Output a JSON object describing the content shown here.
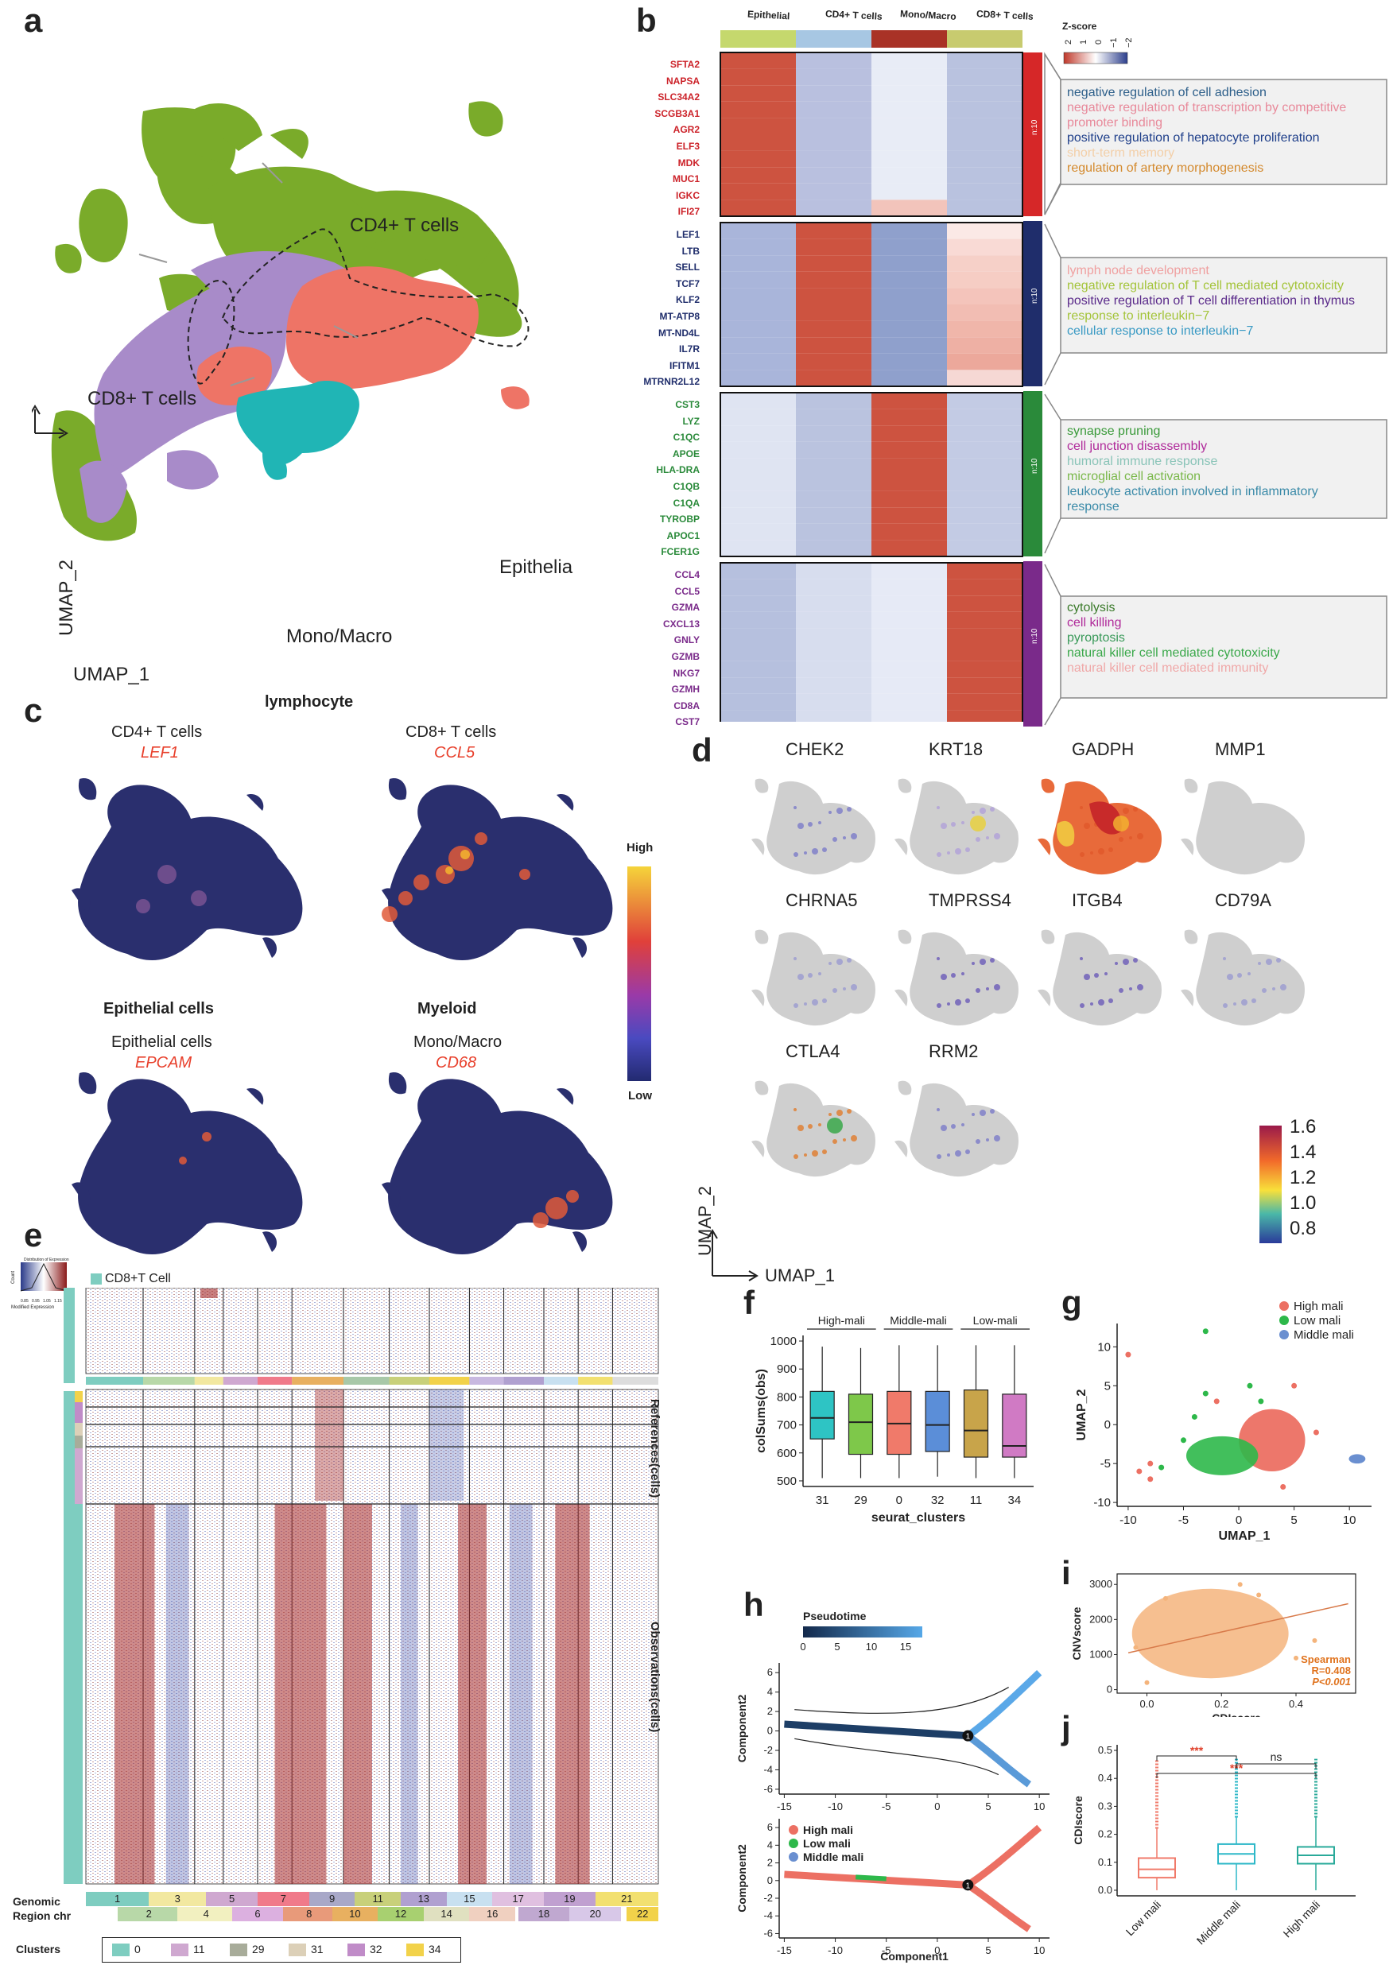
{
  "figure": {
    "panel_labels": {
      "a": "a",
      "b": "b",
      "c": "c",
      "d": "d",
      "e": "e",
      "f": "f",
      "g": "g",
      "h": "h",
      "i": "i",
      "j": "j"
    }
  },
  "panel_a": {
    "labels": [
      "CD4+ T cells",
      "CD8+ T cells",
      "Epithelia",
      "Mono/Macro"
    ],
    "axis_x": "UMAP_1",
    "axis_y": "UMAP_2",
    "colors": {
      "cd4": "#7aab2a",
      "cd8": "#a88bc9",
      "epi": "#ee7466",
      "mono": "#20b5b5"
    }
  },
  "panel_b": {
    "columns": [
      "Epithelial",
      "CD4+ T cells",
      "Mono/Macro",
      "CD8+ T cells"
    ],
    "column_colors": [
      "#c5d86d",
      "#a7c7e3",
      "#a93226",
      "#c8cb6f"
    ],
    "legend_title": "Z-score",
    "legend_ticks": [
      "2",
      "1",
      "0",
      "−1",
      "−2"
    ],
    "groups": [
      {
        "label": "n:10",
        "bar_color": "#d62728",
        "gene_color": "#cc2229",
        "genes": [
          "SFTA2",
          "NAPSA",
          "SLC34A2",
          "SCGB3A1",
          "AGR2",
          "ELF3",
          "MDK",
          "MUC1",
          "IGKC",
          "IFI27"
        ],
        "terms": [
          {
            "t": "negative regulation of cell adhesion",
            "c": "#2d5f8a"
          },
          {
            "t": "negative regulation of transcription by competitive",
            "c": "#e8899a"
          },
          {
            "t": "promoter binding",
            "c": "#e8899a"
          },
          {
            "t": "positive regulation of hepatocyte proliferation",
            "c": "#1f3f8a"
          },
          {
            "t": "short-term memory",
            "c": "#f3cfa8"
          },
          {
            "t": "regulation of artery morphogenesis",
            "c": "#d48a2e"
          }
        ]
      },
      {
        "label": "n:10",
        "bar_color": "#1f2d6b",
        "gene_color": "#1f2d6b",
        "genes": [
          "LEF1",
          "LTB",
          "SELL",
          "TCF7",
          "KLF2",
          "MT-ATP8",
          "MT-ND4L",
          "IL7R",
          "IFITM1",
          "MTRNR2L12"
        ],
        "terms": [
          {
            "t": "lymph node development",
            "c": "#f0a0a0"
          },
          {
            "t": "negative regulation of T cell mediated cytotoxicity",
            "c": "#a4c43a"
          },
          {
            "t": "positive regulation of T cell differentiation in thymus",
            "c": "#5a2a8a"
          },
          {
            "t": "response to interleukin−7",
            "c": "#a4c43a"
          },
          {
            "t": "cellular response to interleukin−7",
            "c": "#3a9ac4"
          }
        ]
      },
      {
        "label": "n:10",
        "bar_color": "#2a8a3a",
        "gene_color": "#2a8a3a",
        "genes": [
          "CST3",
          "LYZ",
          "C1QC",
          "APOE",
          "HLA-DRA",
          "C1QB",
          "C1QA",
          "TYROBP",
          "APOC1",
          "FCER1G"
        ],
        "terms": [
          {
            "t": "synapse pruning",
            "c": "#3a9a3a"
          },
          {
            "t": "cell junction disassembly",
            "c": "#b02a9a"
          },
          {
            "t": "humoral immune response",
            "c": "#8ac4b8"
          },
          {
            "t": "microglial cell activation",
            "c": "#7ab84a"
          },
          {
            "t": "leukocyte activation involved in inflammatory",
            "c": "#3a8aa8"
          },
          {
            "t": "response",
            "c": "#3a8aa8"
          }
        ]
      },
      {
        "label": "n:10",
        "bar_color": "#7a2a8a",
        "gene_color": "#7a2a8a",
        "genes": [
          "CCL4",
          "CCL5",
          "GZMA",
          "CXCL13",
          "GNLY",
          "GZMB",
          "NKG7",
          "GZMH",
          "CD8A",
          "CST7"
        ],
        "terms": [
          {
            "t": "cytolysis",
            "c": "#3a7a2a"
          },
          {
            "t": "cell killing",
            "c": "#b02a9a"
          },
          {
            "t": "pyroptosis",
            "c": "#3a9a5a"
          },
          {
            "t": "natural killer cell mediated cytotoxicity",
            "c": "#3aa84a"
          },
          {
            "t": "natural killer cell mediated immunity",
            "c": "#f0a8a8"
          }
        ]
      }
    ]
  },
  "panel_c": {
    "row1_title": "lymphocyte",
    "row2_titles": [
      "Epithelial cells",
      "Myeloid"
    ],
    "plots": [
      {
        "cell": "CD4+ T cells",
        "gene": "LEF1"
      },
      {
        "cell": "CD8+ T cells",
        "gene": "CCL5"
      },
      {
        "cell": "Epithelial cells",
        "gene": "EPCAM"
      },
      {
        "cell": "Mono/Macro",
        "gene": "CD68"
      }
    ],
    "legend_high": "High",
    "legend_low": "Low"
  },
  "panel_d": {
    "genes": [
      "CHEK2",
      "KRT18",
      "GADPH",
      "MMP1",
      "CHRNA5",
      "TMPRSS4",
      "ITGB4",
      "CD79A",
      "CTLA4",
      "RRM2"
    ],
    "legend_ticks": [
      "1.6",
      "1.4",
      "1.2",
      "1.0",
      "0.8"
    ],
    "axis_x": "UMAP_1",
    "axis_y": "UMAP_2"
  },
  "panel_e": {
    "ref_label": "CD8+T Cell",
    "references_label": "References(cells)",
    "observations_label": "Observations(cells)",
    "key_title": "Distribution of Expression",
    "key_xlabel": "Modified Expression",
    "key_ylabel": "Count",
    "key_ticks": [
      "0.85",
      "0.95",
      "1.05",
      "1.15"
    ],
    "genomic_label": "Genomic",
    "region_label": "Region chr",
    "chr_top": [
      "1",
      "3",
      "5",
      "7",
      "9",
      "11",
      "13",
      "15",
      "17",
      "19",
      "21"
    ],
    "chr_bottom": [
      "2",
      "4",
      "6",
      "8",
      "10",
      "12",
      "14",
      "16",
      "18",
      "20",
      "22"
    ],
    "clusters_label": "Clusters",
    "clusters": [
      {
        "name": "0",
        "color": "#7ecdc0"
      },
      {
        "name": "11",
        "color": "#cfa8d0"
      },
      {
        "name": "29",
        "color": "#a8ac9a"
      },
      {
        "name": "31",
        "color": "#dcd0b8"
      },
      {
        "name": "32",
        "color": "#c08cc8"
      },
      {
        "name": "34",
        "color": "#f2d24a"
      }
    ]
  },
  "panel_f": {
    "chart_data": {
      "type": "box",
      "categories": [
        "31",
        "29",
        "0",
        "32",
        "11",
        "34"
      ],
      "groups": [
        "High-mali",
        "Middle-mali",
        "Low-mali"
      ],
      "xlabel": "seurat_clusters",
      "ylabel": "colSums(obs)",
      "ylim": [
        480,
        1020
      ],
      "yticks": [
        "500",
        "600",
        "700",
        "800",
        "900",
        "1000"
      ],
      "colors": [
        "#2ec4c4",
        "#7ec84a",
        "#f07a6a",
        "#5b8ed8",
        "#c8a44a",
        "#d07ac4"
      ],
      "boxes": [
        {
          "q1": 650,
          "med": 725,
          "q3": 820,
          "lo": 510,
          "hi": 980
        },
        {
          "q1": 595,
          "med": 710,
          "q3": 810,
          "lo": 510,
          "hi": 975
        },
        {
          "q1": 595,
          "med": 705,
          "q3": 820,
          "lo": 510,
          "hi": 985
        },
        {
          "q1": 605,
          "med": 700,
          "q3": 820,
          "lo": 515,
          "hi": 985
        },
        {
          "q1": 585,
          "med": 680,
          "q3": 825,
          "lo": 510,
          "hi": 985
        },
        {
          "q1": 585,
          "med": 625,
          "q3": 810,
          "lo": 510,
          "hi": 985
        }
      ]
    }
  },
  "panel_g": {
    "chart_data": {
      "type": "scatter",
      "legend": [
        "High mali",
        "Low mali",
        "Middle mali"
      ],
      "colors": [
        "#ec7063",
        "#2db84a",
        "#6a8fd0"
      ],
      "xlabel": "UMAP_1",
      "ylabel": "UMAP_2",
      "xticks": [
        "-10",
        "-5",
        "0",
        "5",
        "10"
      ],
      "yticks": [
        "10",
        "5",
        "0",
        "-5",
        "-10"
      ],
      "xlim": [
        -11,
        12
      ],
      "ylim": [
        -10.5,
        13
      ]
    }
  },
  "panel_h": {
    "pseudotime_label": "Pseudotime",
    "pseudotime_ticks": [
      "0",
      "5",
      "10",
      "15"
    ],
    "top_ylabel": "Component2",
    "bottom_ylabel": "Component2",
    "xlabel": "Component1",
    "top_yticks": [
      "6",
      "4",
      "2",
      "0",
      "-2",
      "-4",
      "-6"
    ],
    "bottom_yticks": [
      "6",
      "4",
      "2",
      "0",
      "-2",
      "-4",
      "-6"
    ],
    "xticks": [
      "-15",
      "-10",
      "-5",
      "0",
      "5",
      "10"
    ],
    "branch": "1",
    "legend": [
      "High mali",
      "Low mali",
      "Middle mali"
    ],
    "legend_colors": [
      "#ec7063",
      "#2db84a",
      "#6a8fd0"
    ]
  },
  "panel_i": {
    "chart_data": {
      "type": "scatter",
      "xlabel": "CDIscore",
      "ylabel": "CNVscore",
      "xticks": [
        "0.0",
        "0.2",
        "0.4"
      ],
      "yticks": [
        "3000",
        "2000",
        "1000",
        "0"
      ],
      "xlim": [
        -0.08,
        0.56
      ],
      "ylim": [
        -100,
        3300
      ],
      "annotation_method": "Spearman",
      "annotation_r": "R=0.408",
      "annotation_p": "P<0.001",
      "color": "#f4b47c"
    }
  },
  "panel_j": {
    "chart_data": {
      "type": "box",
      "categories": [
        "Low mali",
        "Middle mali",
        "High mali"
      ],
      "ylabel": "CDIscore",
      "yticks": [
        "0.0",
        "0.1",
        "0.2",
        "0.3",
        "0.4",
        "0.5"
      ],
      "ylim": [
        -0.02,
        0.52
      ],
      "colors": [
        "#f07a6a",
        "#2eb8c8",
        "#2aaa9a"
      ],
      "boxes": [
        {
          "q1": 0.045,
          "med": 0.075,
          "q3": 0.115,
          "lo": 0.0,
          "hi": 0.22
        },
        {
          "q1": 0.095,
          "med": 0.13,
          "q3": 0.165,
          "lo": 0.0,
          "hi": 0.26
        },
        {
          "q1": 0.095,
          "med": 0.125,
          "q3": 0.155,
          "lo": 0.0,
          "hi": 0.26
        }
      ],
      "sig_labels": [
        "***",
        "***",
        "ns"
      ]
    }
  }
}
